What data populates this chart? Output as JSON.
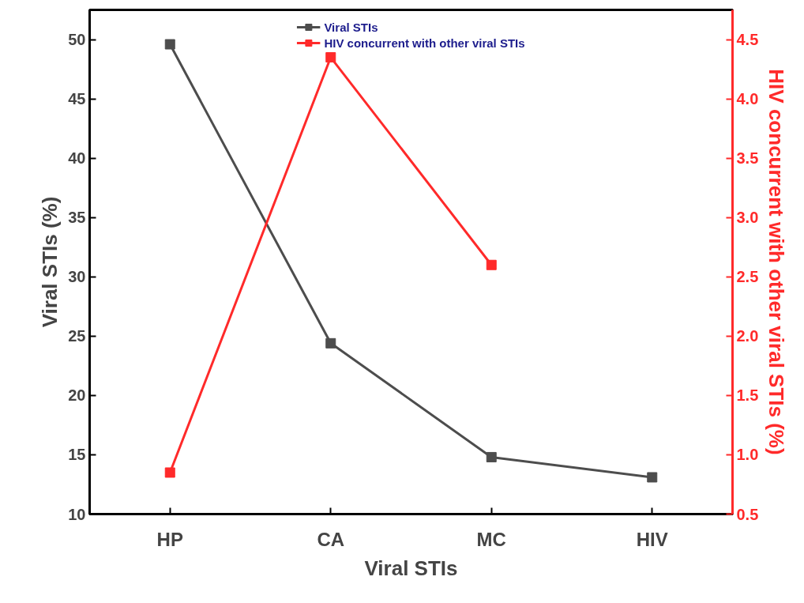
{
  "chart_data": {
    "type": "line",
    "xlabel": "Viral STIs",
    "ylabel": "Viral STIs (%)",
    "y2label": "HIV concurrent with other viral STIs (%)",
    "categories": [
      "HP",
      "CA",
      "MC",
      "HIV"
    ],
    "series": [
      {
        "name": "Viral STIs",
        "color": "#4d4d4d",
        "values": [
          49.6,
          24.4,
          14.8,
          13.1
        ]
      },
      {
        "name": "HIV concurrent with other viral STIs",
        "color": "#ff2a2a",
        "axis": "y2",
        "values": [
          0.85,
          4.35,
          2.6,
          null
        ]
      }
    ],
    "ylim": [
      10,
      52.5
    ],
    "yticks": [
      10,
      15,
      20,
      25,
      30,
      35,
      40,
      45,
      50
    ],
    "y2lim": [
      0.5,
      4.75
    ],
    "y2ticks": [
      {
        "value": 0.5,
        "label": "0.5"
      },
      {
        "value": 1.0,
        "label": "1.0"
      },
      {
        "value": 1.5,
        "label": "1.5"
      },
      {
        "value": 2.0,
        "label": "2.0"
      },
      {
        "value": 2.5,
        "label": "2.5"
      },
      {
        "value": 3.0,
        "label": "3.0"
      },
      {
        "value": 3.5,
        "label": "3.5"
      },
      {
        "value": 4.0,
        "label": "4.0"
      },
      {
        "value": 4.5,
        "label": "4.5"
      }
    ],
    "marker": "square",
    "grid": false,
    "legend": "top"
  }
}
